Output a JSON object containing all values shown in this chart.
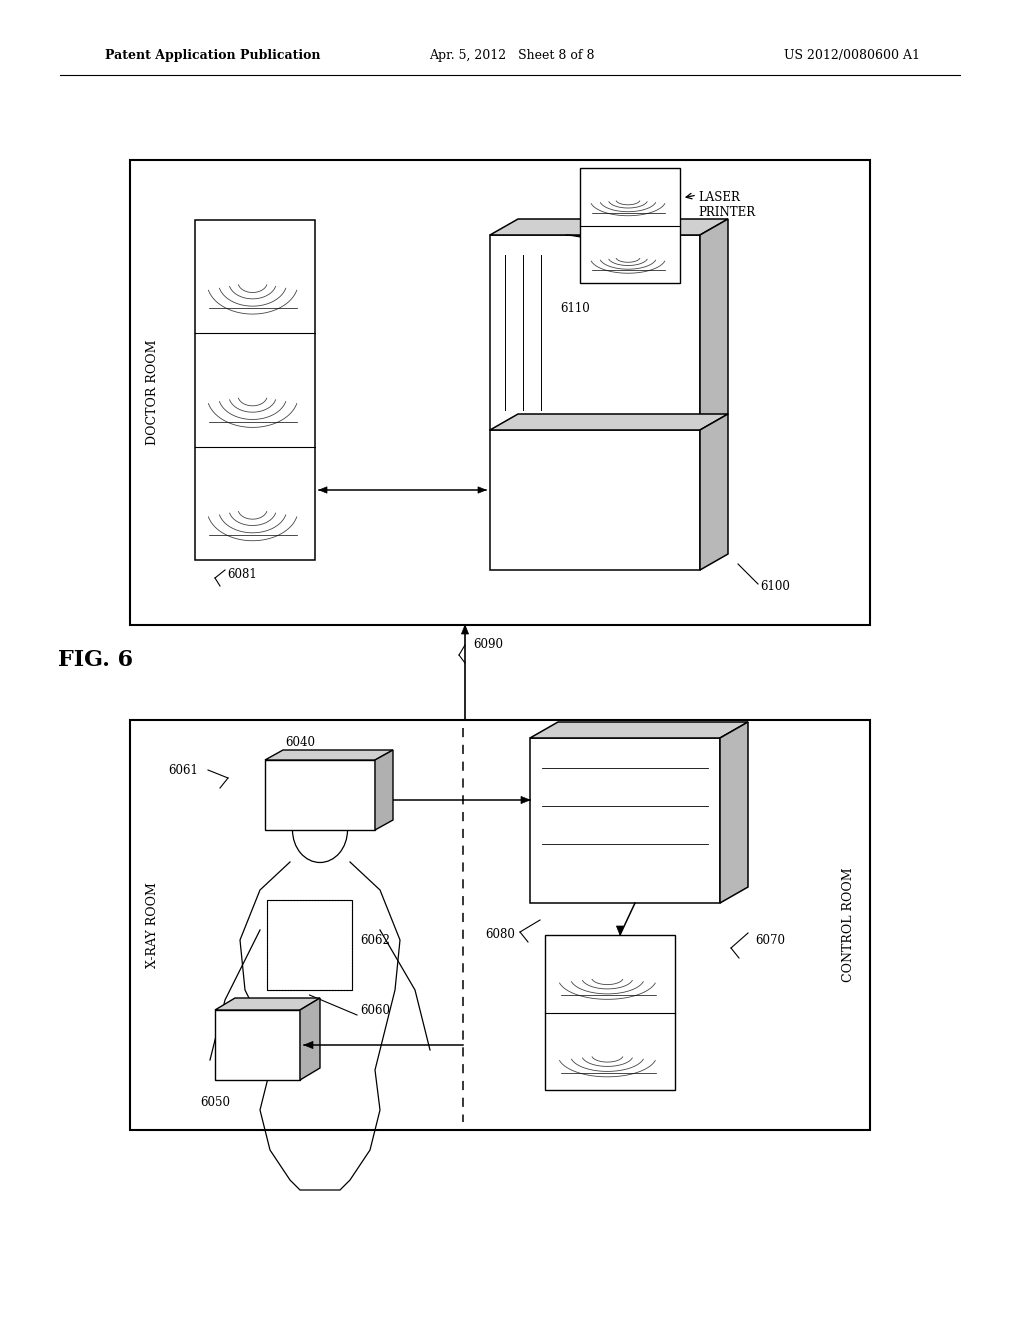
{
  "title_left": "Patent Application Publication",
  "title_center": "Apr. 5, 2012   Sheet 8 of 8",
  "title_right": "US 2012/0080600 A1",
  "fig_label": "FIG. 6",
  "background": "#ffffff",
  "doctor_room_label": "DOCTOR ROOM",
  "xray_room_label": "X-RAY ROOM",
  "control_room_label": "CONTROL ROOM",
  "laser_printer_label": "LASER\nPRINTER",
  "line_color": "#000000",
  "box_face": "#ffffff",
  "box_gray_top": "#d8d8d8",
  "box_gray_right": "#b8b8b8",
  "shelf_arc_color": "#555555"
}
